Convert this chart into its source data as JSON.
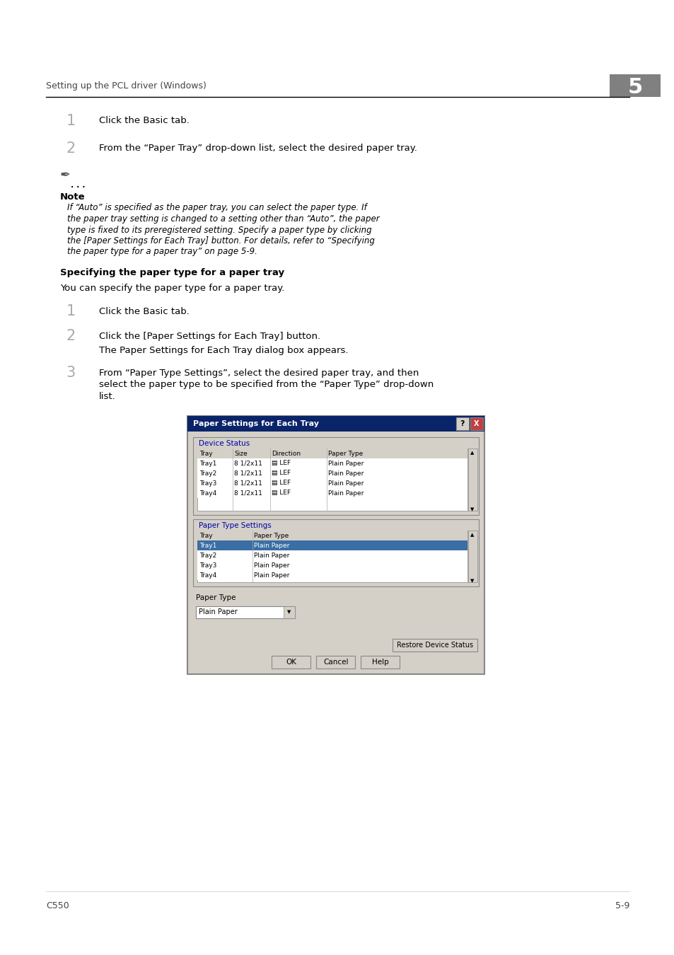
{
  "page_bg": "#ffffff",
  "header_text": "Setting up the PCL driver (Windows)",
  "header_num": "5",
  "footer_left": "C550",
  "footer_right": "5-9",
  "step1_num": "1",
  "step1_text": "Click the Basic tab.",
  "step2_num": "2",
  "step2_text": "From the “Paper Tray” drop-down list, select the desired paper tray.",
  "note_label": "Note",
  "note_text": "If “Auto” is specified as the paper tray, you can select the paper type. If\nthe paper tray setting is changed to a setting other than “Auto”, the paper\ntype is fixed to its preregistered setting. Specify a paper type by clicking\nthe [Paper Settings for Each Tray] button. For details, refer to “Specifying\nthe paper type for a paper tray” on page 5-9.",
  "section_title": "Specifying the paper type for a paper tray",
  "section_intro": "You can specify the paper type for a paper tray.",
  "step3_num": "1",
  "step3_text": "Click the Basic tab.",
  "step4_num": "2",
  "step4_text": "Click the [Paper Settings for Each Tray] button.",
  "step4b_text": "The Paper Settings for Each Tray dialog box appears.",
  "step5_num": "3",
  "step5_text": "From “Paper Type Settings”, select the desired paper tray, and then\nselect the paper type to be specified from the “Paper Type” drop-down\nlist.",
  "dialog_title": "Paper Settings for Each Tray",
  "dialog_section1": "Device Status",
  "dialog_section2": "Paper Type Settings",
  "dialog_section3": "Paper Type",
  "table1_headers": [
    "Tray",
    "Size",
    "Direction",
    "Paper Type"
  ],
  "table1_rows": [
    [
      "Tray1",
      "8 1/2x11",
      "▤ LEF",
      "Plain Paper"
    ],
    [
      "Tray2",
      "8 1/2x11",
      "▤ LEF",
      "Plain Paper"
    ],
    [
      "Tray3",
      "8 1/2x11",
      "▤ LEF",
      "Plain Paper"
    ],
    [
      "Tray4",
      "8 1/2x11",
      "▤ LEF",
      "Plain Paper"
    ]
  ],
  "table2_headers": [
    "Tray",
    "Paper Type"
  ],
  "table2_rows": [
    [
      "Tray1",
      "Plain Paper"
    ],
    [
      "Tray2",
      "Plain Paper"
    ],
    [
      "Tray3",
      "Plain Paper"
    ],
    [
      "Tray4",
      "Plain Paper"
    ]
  ],
  "paper_type_value": "Plain Paper",
  "btn_restore": "Restore Device Status",
  "btn_ok": "OK",
  "btn_cancel": "Cancel",
  "btn_help": "Help",
  "dlg_bg_color": "#d4d0c8",
  "dlg_title_color": "#0a246a",
  "dlg_blue_row": "#3a6ea5",
  "table_bg": "#ffffff",
  "table_header_bg": "#d4d0c8",
  "groupbox_label_color": "#0000aa"
}
